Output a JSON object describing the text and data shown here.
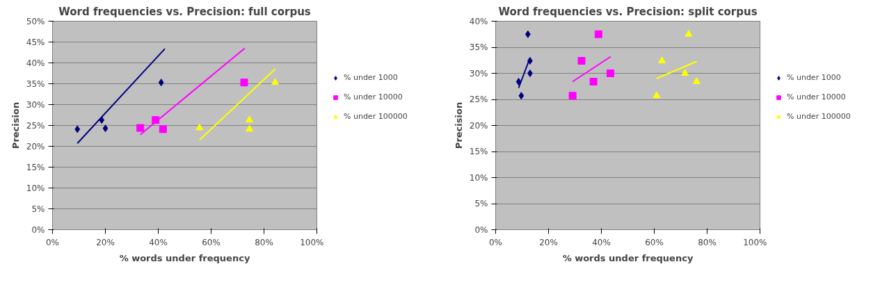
{
  "chart_data": [
    {
      "type": "scatter",
      "title": "Word frequencies vs. Precision: full corpus",
      "xlabel": "% words under frequency",
      "ylabel": "Precision",
      "xlim": [
        0,
        100
      ],
      "xticks": [
        {
          "value": 0,
          "label": "0%"
        },
        {
          "value": 20,
          "label": "20%"
        },
        {
          "value": 40,
          "label": "40%"
        },
        {
          "value": 60,
          "label": "60%"
        },
        {
          "value": 80,
          "label": "80%"
        },
        {
          "value": 100,
          "label": "100%"
        }
      ],
      "ylim": [
        0,
        50
      ],
      "yticks": [
        {
          "value": 0,
          "label": "0%"
        },
        {
          "value": 5,
          "label": "5%"
        },
        {
          "value": 10,
          "label": "10%"
        },
        {
          "value": 15,
          "label": "15%"
        },
        {
          "value": 20,
          "label": "20%"
        },
        {
          "value": 25,
          "label": "25%"
        },
        {
          "value": 30,
          "label": "30%"
        },
        {
          "value": 35,
          "label": "35%"
        },
        {
          "value": 40,
          "label": "40%"
        },
        {
          "value": 45,
          "label": "45%"
        },
        {
          "value": 50,
          "label": "50%"
        }
      ],
      "grid": "y",
      "legend": "right",
      "series": [
        {
          "name": "% under 1000",
          "color": "#000080",
          "marker": "diamond",
          "x": [
            9.4,
            18.6,
            20.0,
            41.1
          ],
          "values": [
            24.1,
            26.3,
            24.3,
            35.3
          ]
        },
        {
          "name": "% under 10000",
          "color": "#ff00ff",
          "marker": "square",
          "x": [
            33.2,
            39.0,
            41.8,
            72.5
          ],
          "values": [
            24.4,
            26.3,
            24.1,
            35.3
          ]
        },
        {
          "name": "% under 100000",
          "color": "#ffff00",
          "marker": "triangle",
          "x": [
            55.6,
            74.5,
            74.5,
            84.2
          ],
          "values": [
            24.4,
            26.3,
            24.1,
            35.3
          ]
        },
        {
          "type": "line",
          "color": "#000080",
          "x": [
            9.4,
            42.5
          ],
          "values": [
            20.7,
            43.4
          ]
        },
        {
          "type": "line",
          "color": "#ff00ff",
          "x": [
            33.2,
            72.7
          ],
          "values": [
            22.8,
            43.5
          ]
        },
        {
          "type": "line",
          "color": "#ffff00",
          "x": [
            55.6,
            84.3
          ],
          "values": [
            21.5,
            38.6
          ]
        }
      ]
    },
    {
      "type": "scatter",
      "title": "Word frequencies vs. Precision: split corpus",
      "xlabel": "% words under frequency",
      "ylabel": "Precision",
      "xlim": [
        0,
        100
      ],
      "xticks": [
        {
          "value": 0,
          "label": "0%"
        },
        {
          "value": 20,
          "label": "20%"
        },
        {
          "value": 40,
          "label": "40%"
        },
        {
          "value": 60,
          "label": "60%"
        },
        {
          "value": 80,
          "label": "80%"
        },
        {
          "value": 100,
          "label": "100%"
        }
      ],
      "ylim": [
        0,
        40
      ],
      "yticks": [
        {
          "value": 0,
          "label": "0%"
        },
        {
          "value": 5,
          "label": "5%"
        },
        {
          "value": 10,
          "label": "10%"
        },
        {
          "value": 15,
          "label": "15%"
        },
        {
          "value": 20,
          "label": "20%"
        },
        {
          "value": 25,
          "label": "25%"
        },
        {
          "value": 30,
          "label": "30%"
        },
        {
          "value": 35,
          "label": "35%"
        },
        {
          "value": 40,
          "label": "40%"
        }
      ],
      "grid": "y",
      "legend": "right",
      "series": [
        {
          "name": "% under 1000",
          "color": "#000080",
          "marker": "diamond",
          "x": [
            8.7,
            9.7,
            12.2,
            13.0,
            13.0
          ],
          "values": [
            28.4,
            25.7,
            37.5,
            32.4,
            30.0
          ]
        },
        {
          "name": "% under 10000",
          "color": "#ff00ff",
          "marker": "square",
          "x": [
            29.1,
            32.5,
            37.0,
            38.9,
            43.4
          ],
          "values": [
            25.7,
            32.4,
            28.4,
            37.5,
            30.0
          ]
        },
        {
          "name": "% under 100000",
          "color": "#ffff00",
          "marker": "triangle",
          "x": [
            60.9,
            62.9,
            71.6,
            73.0,
            76.0
          ],
          "values": [
            25.7,
            32.4,
            30.0,
            37.5,
            28.4
          ]
        },
        {
          "type": "line",
          "color": "#000080",
          "x": [
            8.7,
            13.0
          ],
          "values": [
            27.2,
            33.0
          ]
        },
        {
          "type": "line",
          "color": "#ff00ff",
          "x": [
            29.1,
            43.5
          ],
          "values": [
            28.4,
            33.2
          ]
        },
        {
          "type": "line",
          "color": "#ffff00",
          "x": [
            60.9,
            76.1
          ],
          "values": [
            29.0,
            32.3
          ]
        }
      ]
    }
  ]
}
